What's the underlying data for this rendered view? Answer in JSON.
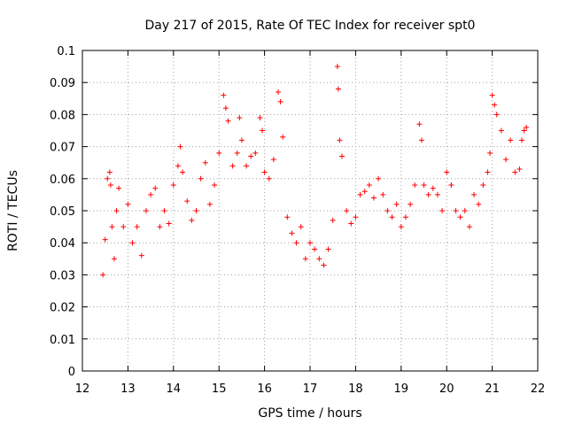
{
  "chart_data": {
    "type": "scatter",
    "title": "Day 217 of 2015, Rate Of TEC Index for receiver spt0",
    "xlabel": "GPS time / hours",
    "ylabel": "ROTI / TECUs",
    "xlim": [
      12,
      22
    ],
    "ylim": [
      0,
      0.1
    ],
    "xticks": [
      12,
      13,
      14,
      15,
      16,
      17,
      18,
      19,
      20,
      21,
      22
    ],
    "yticks": [
      0,
      0.01,
      0.02,
      0.03,
      0.04,
      0.05,
      0.06,
      0.07,
      0.08,
      0.09,
      0.1
    ],
    "xtick_labels": [
      "12",
      "13",
      "14",
      "15",
      "16",
      "17",
      "18",
      "19",
      "20",
      "21",
      "22"
    ],
    "ytick_labels": [
      "0",
      "0.01",
      "0.02",
      "0.03",
      "0.04",
      "0.05",
      "0.06",
      "0.07",
      "0.08",
      "0.09",
      "0.1"
    ],
    "grid": true,
    "marker": "+",
    "color": "#ff0000",
    "series": [
      {
        "name": "spt0",
        "x": [
          12.45,
          12.5,
          12.55,
          12.6,
          12.62,
          12.65,
          12.7,
          12.75,
          12.8,
          12.9,
          13.0,
          13.1,
          13.2,
          13.3,
          13.4,
          13.5,
          13.6,
          13.7,
          13.8,
          13.9,
          14.0,
          14.1,
          14.15,
          14.2,
          14.3,
          14.4,
          14.5,
          14.6,
          14.7,
          14.8,
          14.9,
          15.0,
          15.1,
          15.15,
          15.2,
          15.3,
          15.4,
          15.45,
          15.5,
          15.6,
          15.7,
          15.8,
          15.9,
          15.95,
          16.0,
          16.1,
          16.2,
          16.3,
          16.35,
          16.4,
          16.5,
          16.6,
          16.7,
          16.8,
          16.9,
          17.0,
          17.1,
          17.2,
          17.3,
          17.4,
          17.5,
          17.6,
          17.62,
          17.65,
          17.7,
          17.8,
          17.9,
          18.0,
          18.1,
          18.2,
          18.3,
          18.4,
          18.5,
          18.6,
          18.7,
          18.8,
          18.9,
          19.0,
          19.1,
          19.2,
          19.3,
          19.4,
          19.45,
          19.5,
          19.6,
          19.7,
          19.8,
          19.9,
          20.0,
          20.1,
          20.2,
          20.3,
          20.4,
          20.5,
          20.6,
          20.7,
          20.8,
          20.9,
          20.95,
          21.0,
          21.05,
          21.1,
          21.2,
          21.3,
          21.4,
          21.5,
          21.6,
          21.65,
          21.7,
          21.75
        ],
        "y": [
          0.03,
          0.041,
          0.06,
          0.062,
          0.058,
          0.045,
          0.035,
          0.05,
          0.057,
          0.045,
          0.052,
          0.04,
          0.045,
          0.036,
          0.05,
          0.055,
          0.057,
          0.045,
          0.05,
          0.046,
          0.058,
          0.064,
          0.07,
          0.062,
          0.053,
          0.047,
          0.05,
          0.06,
          0.065,
          0.052,
          0.058,
          0.068,
          0.086,
          0.082,
          0.078,
          0.064,
          0.068,
          0.079,
          0.072,
          0.064,
          0.067,
          0.068,
          0.079,
          0.075,
          0.062,
          0.06,
          0.066,
          0.087,
          0.084,
          0.073,
          0.048,
          0.043,
          0.04,
          0.045,
          0.035,
          0.04,
          0.038,
          0.035,
          0.033,
          0.038,
          0.047,
          0.095,
          0.088,
          0.072,
          0.067,
          0.05,
          0.046,
          0.048,
          0.055,
          0.056,
          0.058,
          0.054,
          0.06,
          0.055,
          0.05,
          0.048,
          0.052,
          0.045,
          0.048,
          0.052,
          0.058,
          0.077,
          0.072,
          0.058,
          0.055,
          0.057,
          0.055,
          0.05,
          0.062,
          0.058,
          0.05,
          0.048,
          0.05,
          0.045,
          0.055,
          0.052,
          0.058,
          0.062,
          0.068,
          0.086,
          0.083,
          0.08,
          0.075,
          0.066,
          0.072,
          0.062,
          0.063,
          0.072,
          0.075,
          0.076
        ]
      }
    ]
  }
}
